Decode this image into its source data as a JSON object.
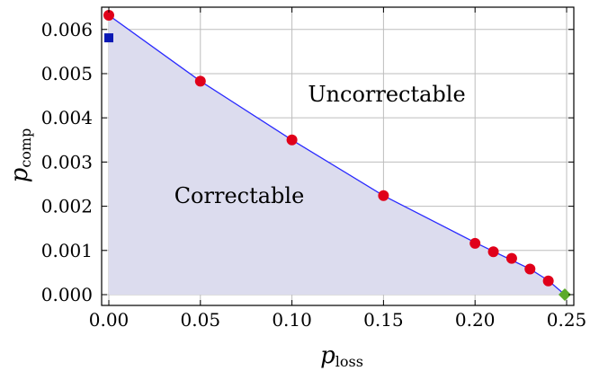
{
  "chart_data": {
    "type": "scatter",
    "title": "",
    "xlabel": {
      "main": "p",
      "sub": "loss"
    },
    "ylabel": {
      "main": "p",
      "sub": "comp"
    },
    "xlim": [
      0.0,
      0.25
    ],
    "ylim": [
      0.0,
      0.0063
    ],
    "grid": true,
    "x_ticks": [
      "0.00",
      "0.05",
      "0.10",
      "0.15",
      "0.20",
      "0.25"
    ],
    "y_ticks": [
      "0.000",
      "0.001",
      "0.002",
      "0.003",
      "0.004",
      "0.005",
      "0.006"
    ],
    "regions": [
      {
        "label": "Correctable",
        "fill": "#dcdcee"
      },
      {
        "label": "Uncorrectable"
      }
    ],
    "boundary_line": {
      "color": "#2a2aff",
      "points": [
        [
          0.0,
          0.00632
        ],
        [
          0.05,
          0.00483
        ],
        [
          0.1,
          0.0035
        ],
        [
          0.15,
          0.00224
        ],
        [
          0.2,
          0.00118
        ],
        [
          0.21,
          0.00098
        ],
        [
          0.22,
          0.00078
        ],
        [
          0.23,
          0.00058
        ],
        [
          0.24,
          0.00032
        ],
        [
          0.249,
          0.0
        ]
      ]
    },
    "series": [
      {
        "marker": "circle",
        "color": "#e0001a",
        "points": [
          [
            0.0,
            0.00632
          ],
          [
            0.05,
            0.00483
          ],
          [
            0.1,
            0.0035
          ],
          [
            0.15,
            0.00224
          ],
          [
            0.2,
            0.00116
          ],
          [
            0.21,
            0.00097
          ],
          [
            0.22,
            0.00082
          ],
          [
            0.23,
            0.00058
          ],
          [
            0.24,
            0.00031
          ]
        ]
      },
      {
        "marker": "square",
        "color": "#0a18b4",
        "points": [
          [
            0.0,
            0.00581
          ]
        ]
      },
      {
        "marker": "diamond",
        "color": "#5caa2a",
        "points": [
          [
            0.249,
            0.0
          ]
        ]
      }
    ]
  }
}
